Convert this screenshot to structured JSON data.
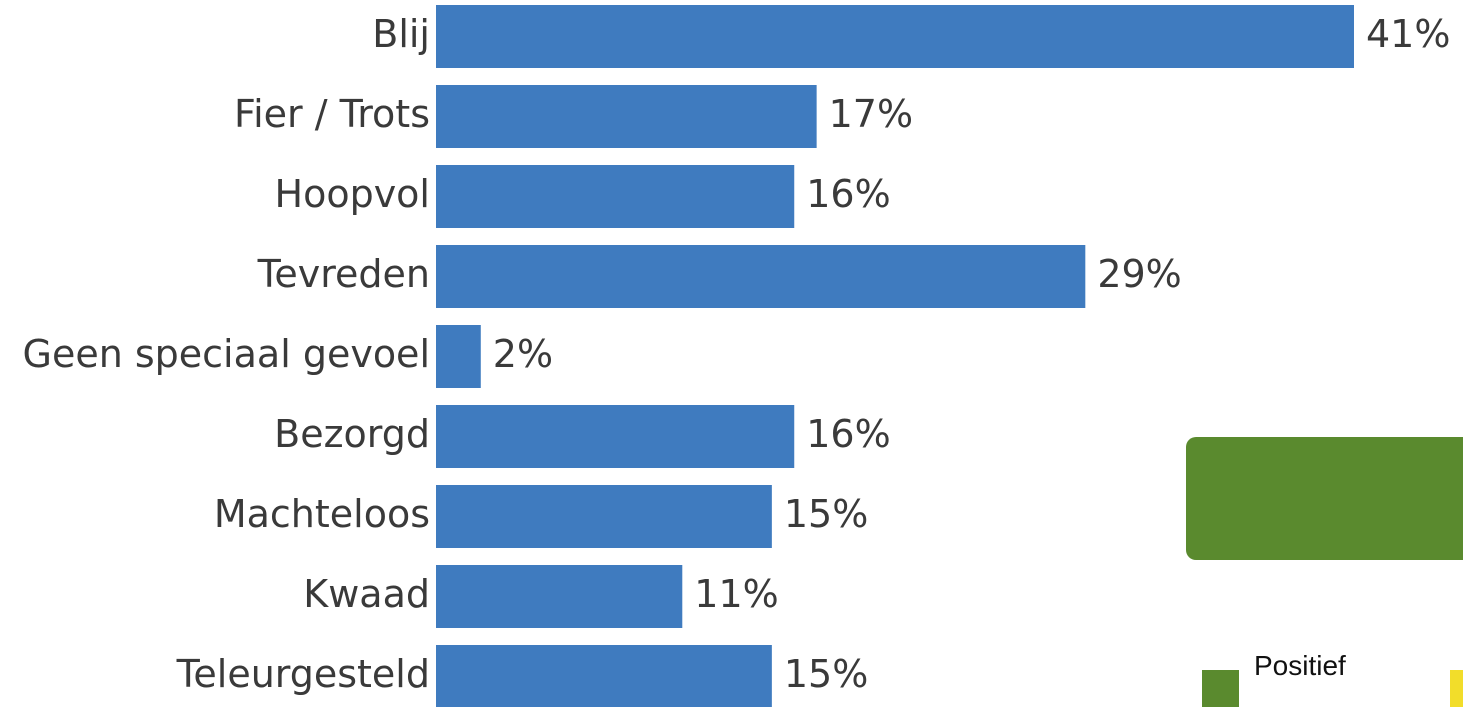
{
  "chart_data": {
    "type": "bar",
    "orientation": "horizontal",
    "categories": [
      "Blij",
      "Fier / Trots",
      "Hoopvol",
      "Tevreden",
      "Geen speciaal gevoel",
      "Bezorgd",
      "Machteloos",
      "Kwaad",
      "Teleurgesteld"
    ],
    "values": [
      41,
      17,
      16,
      29,
      2,
      16,
      15,
      11,
      15
    ],
    "value_labels": [
      "41%",
      "17%",
      "16%",
      "29%",
      "2%",
      "16%",
      "15%",
      "11%",
      "15%"
    ],
    "bar_color": "#3f7bbf",
    "xlim": [
      0,
      41
    ],
    "grid": false
  },
  "legend": {
    "items": [
      {
        "label": "Positief",
        "color": "#5a8a2e"
      },
      {
        "label": "",
        "color": "#f2dd2a"
      }
    ]
  },
  "panel": {
    "color": "#5a8a2e"
  }
}
